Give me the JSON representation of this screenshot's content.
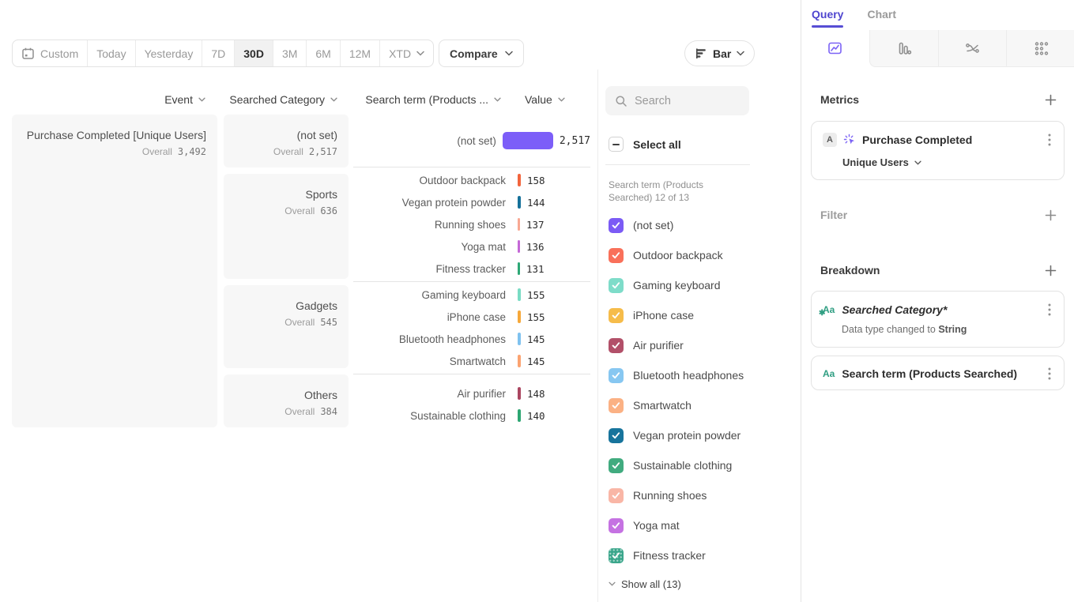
{
  "toolbar": {
    "date_buttons": [
      {
        "label": "Custom"
      },
      {
        "label": "Today"
      },
      {
        "label": "Yesterday"
      },
      {
        "label": "7D"
      },
      {
        "label": "30D"
      },
      {
        "label": "3M"
      },
      {
        "label": "6M"
      },
      {
        "label": "12M"
      },
      {
        "label": "XTD"
      }
    ],
    "compare_label": "Compare",
    "chart_type_label": "Bar"
  },
  "table": {
    "headers": {
      "event": "Event",
      "category": "Searched Category",
      "term": "Search term (Products ...",
      "value": "Value"
    },
    "overall_label": "Overall",
    "event": {
      "title": "Purchase Completed [Unique Users]",
      "overall": "3,492"
    },
    "groups": [
      {
        "category": "(not set)",
        "overall": "2,517",
        "rows": [
          {
            "term": "(not set)",
            "value": "2,517",
            "color": "#7c5ef8"
          }
        ]
      },
      {
        "category": "Sports",
        "overall": "636",
        "rows": [
          {
            "term": "Outdoor backpack",
            "value": "158",
            "color": "#f2653d"
          },
          {
            "term": "Vegan protein powder",
            "value": "144",
            "color": "#16719a"
          },
          {
            "term": "Running shoes",
            "value": "137",
            "color": "#f8a893"
          },
          {
            "term": "Yoga mat",
            "value": "136",
            "color": "#c468d6"
          },
          {
            "term": "Fitness tracker",
            "value": "131",
            "color": "#2ea876"
          }
        ]
      },
      {
        "category": "Gadgets",
        "overall": "545",
        "rows": [
          {
            "term": "Gaming keyboard",
            "value": "155",
            "color": "#79dcc4"
          },
          {
            "term": "iPhone case",
            "value": "155",
            "color": "#f6a83a"
          },
          {
            "term": "Bluetooth headphones",
            "value": "145",
            "color": "#7fc2ef"
          },
          {
            "term": "Smartwatch",
            "value": "145",
            "color": "#fba371"
          }
        ]
      },
      {
        "category": "Others",
        "overall": "384",
        "rows": [
          {
            "term": "Air purifier",
            "value": "148",
            "color": "#aa4660"
          },
          {
            "term": "Sustainable clothing",
            "value": "140",
            "color": "#2da672"
          }
        ]
      }
    ]
  },
  "filters": {
    "search_placeholder": "Search",
    "select_all_label": "Select all",
    "caption": "Search term (Products Searched) 12 of 13",
    "items": [
      {
        "label": "(not set)",
        "color": "#7b5bf5"
      },
      {
        "label": "Outdoor backpack",
        "color": "#f9705a"
      },
      {
        "label": "Gaming keyboard",
        "color": "#7edcc9"
      },
      {
        "label": "iPhone case",
        "color": "#f6bc4a"
      },
      {
        "label": "Air purifier",
        "color": "#b25069"
      },
      {
        "label": "Bluetooth headphones",
        "color": "#87c7f1"
      },
      {
        "label": "Smartwatch",
        "color": "#fbb184"
      },
      {
        "label": "Vegan protein powder",
        "color": "#17749c"
      },
      {
        "label": "Sustainable clothing",
        "color": "#41ab7f"
      },
      {
        "label": "Running shoes",
        "color": "#f9b6a6"
      },
      {
        "label": "Yoga mat",
        "color": "#c572e2"
      },
      {
        "label": "Fitness tracker",
        "color": "#3ba68b"
      }
    ],
    "show_all_label": "Show all (13)"
  },
  "query_panel": {
    "tabs": {
      "query": "Query",
      "chart": "Chart"
    },
    "metrics": {
      "heading": "Metrics",
      "badge": "A",
      "event_name": "Purchase Completed",
      "measure": "Unique Users"
    },
    "filter_heading": "Filter",
    "breakdown": {
      "heading": "Breakdown",
      "items": [
        {
          "type_icon": "Aa",
          "label": "Searched Category*",
          "note_prefix": "Data type changed to ",
          "note_value": "String"
        },
        {
          "type_icon": "Aa",
          "label": "Search term (Products Searched)"
        }
      ]
    }
  }
}
